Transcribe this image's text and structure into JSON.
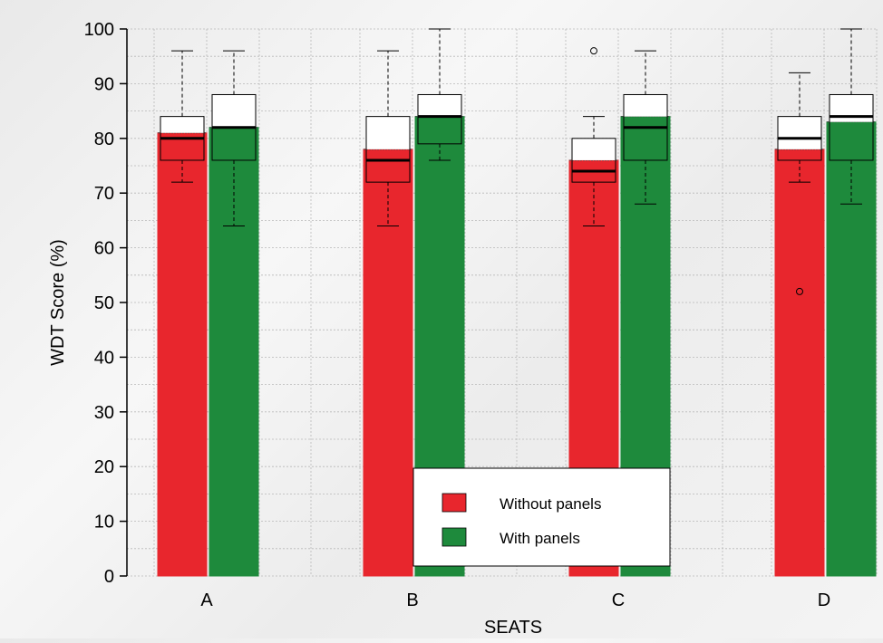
{
  "chart_data": {
    "type": "bar",
    "xlabel": "SEATS",
    "ylabel": "WDT Score (%)",
    "ylim": [
      0,
      100
    ],
    "yticks": [
      "0",
      "10",
      "20",
      "30",
      "40",
      "50",
      "60",
      "70",
      "80",
      "90",
      "100"
    ],
    "grid": true,
    "categories": [
      "A",
      "B",
      "C",
      "D"
    ],
    "series": [
      {
        "name": "Without panels",
        "color": "#e8262d",
        "values": [
          81,
          78,
          76,
          78
        ]
      },
      {
        "name": "With panels",
        "color": "#1e8a3c",
        "values": [
          82,
          84,
          84,
          83
        ]
      }
    ],
    "boxplots": [
      {
        "category": "A",
        "series": "Without panels",
        "whisker_low": 72,
        "q1": 76,
        "median": 80,
        "q3": 84,
        "whisker_high": 96,
        "outliers": []
      },
      {
        "category": "A",
        "series": "With panels",
        "whisker_low": 64,
        "q1": 76,
        "median": 82,
        "q3": 88,
        "whisker_high": 96,
        "outliers": []
      },
      {
        "category": "B",
        "series": "Without panels",
        "whisker_low": 64,
        "q1": 72,
        "median": 76,
        "q3": 84,
        "whisker_high": 96,
        "outliers": []
      },
      {
        "category": "B",
        "series": "With panels",
        "whisker_low": 76,
        "q1": 79,
        "median": 84,
        "q3": 88,
        "whisker_high": 100,
        "outliers": []
      },
      {
        "category": "C",
        "series": "Without panels",
        "whisker_low": 64,
        "q1": 72,
        "median": 74,
        "q3": 80,
        "whisker_high": 84,
        "outliers": [
          96
        ]
      },
      {
        "category": "C",
        "series": "With panels",
        "whisker_low": 68,
        "q1": 76,
        "median": 82,
        "q3": 88,
        "whisker_high": 96,
        "outliers": []
      },
      {
        "category": "D",
        "series": "Without panels",
        "whisker_low": 72,
        "q1": 76,
        "median": 80,
        "q3": 84,
        "whisker_high": 92,
        "outliers": [
          52
        ]
      },
      {
        "category": "D",
        "series": "With panels",
        "whisker_low": 68,
        "q1": 76,
        "median": 84,
        "q3": 88,
        "whisker_high": 100,
        "outliers": []
      }
    ],
    "legend_position": "bottom-center"
  }
}
